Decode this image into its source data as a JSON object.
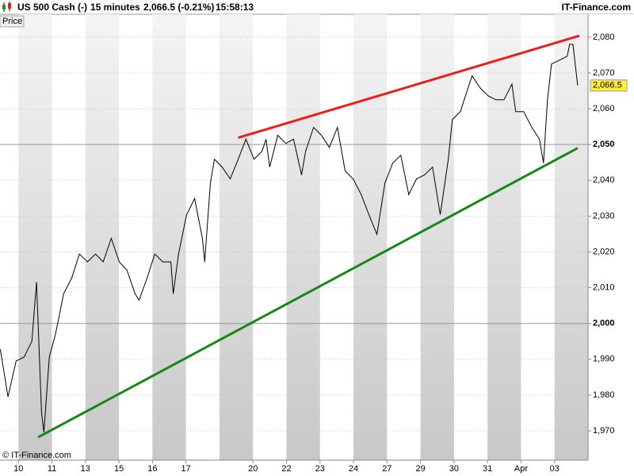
{
  "chart_data": {
    "type": "line",
    "title": "US 500 Cash (-)",
    "interval": "15 minutes",
    "quote": "2,066.5 (-0.21%)",
    "time": "15:58:13",
    "brand": "IT-Finance.com",
    "y_label": "Price",
    "copyright": "© IT-Finance.com",
    "xlim": [
      -0.55,
      17.0
    ],
    "ylim": [
      1961.8,
      2086.4
    ],
    "xticks": [
      {
        "value": 0,
        "label": "10"
      },
      {
        "value": 1,
        "label": "11"
      },
      {
        "value": 2,
        "label": "13"
      },
      {
        "value": 3,
        "label": "15"
      },
      {
        "value": 4,
        "label": "16"
      },
      {
        "value": 5,
        "label": "17"
      },
      {
        "value": 7,
        "label": "20"
      },
      {
        "value": 8,
        "label": "22"
      },
      {
        "value": 9,
        "label": "23"
      },
      {
        "value": 10,
        "label": "24"
      },
      {
        "value": 11,
        "label": "27"
      },
      {
        "value": 12,
        "label": "29"
      },
      {
        "value": 13,
        "label": "30"
      },
      {
        "value": 14,
        "label": "31"
      },
      {
        "value": 15,
        "label": "Apr"
      },
      {
        "value": 16,
        "label": "03"
      }
    ],
    "yticks": [
      {
        "value": 1970,
        "label": "1,970"
      },
      {
        "value": 1980,
        "label": "1,980"
      },
      {
        "value": 1990,
        "label": "1,990"
      },
      {
        "value": 2000,
        "label": "2,000",
        "major": true
      },
      {
        "value": 2010,
        "label": "2,010"
      },
      {
        "value": 2020,
        "label": "2,020"
      },
      {
        "value": 2030,
        "label": "2,030"
      },
      {
        "value": 2040,
        "label": "2,040"
      },
      {
        "value": 2050,
        "label": "2,050",
        "major": true
      },
      {
        "value": 2060,
        "label": "2,060"
      },
      {
        "value": 2070,
        "label": "2,070"
      },
      {
        "value": 2080,
        "label": "2,080"
      }
    ],
    "grid": true,
    "series": [
      {
        "color": "#000000",
        "x": [
          -0.54,
          -0.31,
          -0.07,
          0.17,
          0.4,
          0.54,
          0.69,
          0.76,
          0.92,
          1.11,
          1.35,
          1.59,
          1.82,
          2.06,
          2.3,
          2.53,
          2.77,
          3.01,
          3.24,
          3.48,
          3.6,
          3.84,
          4.07,
          4.31,
          4.55,
          4.62,
          4.78,
          5.02,
          5.26,
          5.49,
          5.56,
          5.73,
          5.85,
          6.08,
          6.32,
          6.56,
          6.79,
          7.03,
          7.27,
          7.39,
          7.5,
          7.74,
          7.98,
          8.21,
          8.45,
          8.57,
          8.81,
          9.04,
          9.28,
          9.52,
          9.75,
          9.99,
          10.23,
          10.46,
          10.7,
          10.94,
          11.17,
          11.41,
          11.65,
          11.88,
          12.12,
          12.36,
          12.59,
          12.83,
          12.95,
          13.19,
          13.42,
          13.54,
          13.78,
          14.02,
          14.25,
          14.49,
          14.73,
          14.84,
          15.08,
          15.32,
          15.55,
          15.67,
          15.79,
          15.91,
          16.15,
          16.38,
          16.45,
          16.55,
          16.69
        ],
        "values": [
          1992.8,
          1979.5,
          1989.5,
          1990.6,
          1995.0,
          2011.6,
          1975.1,
          1969.6,
          1990.6,
          1997.2,
          2008.3,
          2012.7,
          2019.4,
          2017.2,
          2019.4,
          2017.2,
          2023.8,
          2017.2,
          2014.9,
          2008.3,
          2006.5,
          2012.7,
          2019.4,
          2017.2,
          2017.2,
          2008.3,
          2019.4,
          2030.4,
          2034.9,
          2023.8,
          2017.2,
          2039.3,
          2045.9,
          2043.7,
          2040.4,
          2045.9,
          2051.5,
          2045.9,
          2048.1,
          2051.5,
          2043.7,
          2052.6,
          2050.3,
          2051.5,
          2041.5,
          2048.1,
          2054.8,
          2052.6,
          2049.2,
          2054.8,
          2042.6,
          2040.4,
          2036.0,
          2030.4,
          2024.9,
          2039.3,
          2044.8,
          2047.0,
          2036.0,
          2040.4,
          2041.5,
          2043.7,
          2030.4,
          2045.9,
          2057.0,
          2059.2,
          2065.8,
          2069.2,
          2065.8,
          2063.6,
          2062.5,
          2062.5,
          2066.9,
          2059.2,
          2059.2,
          2054.8,
          2051.5,
          2044.8,
          2062.5,
          2072.5,
          2073.6,
          2074.7,
          2078.0,
          2078.0,
          2066.5
        ]
      }
    ],
    "last_price": {
      "value": 2066.5,
      "label": "2,066.5"
    },
    "trendlines": [
      {
        "color": "#ee1c1c",
        "x": [
          6.56,
          16.74
        ],
        "values": [
          2051.9,
          2080.4
        ]
      },
      {
        "color": "#138a13",
        "x": [
          0.59,
          16.69
        ],
        "values": [
          1968.2,
          2049.0
        ]
      }
    ]
  }
}
